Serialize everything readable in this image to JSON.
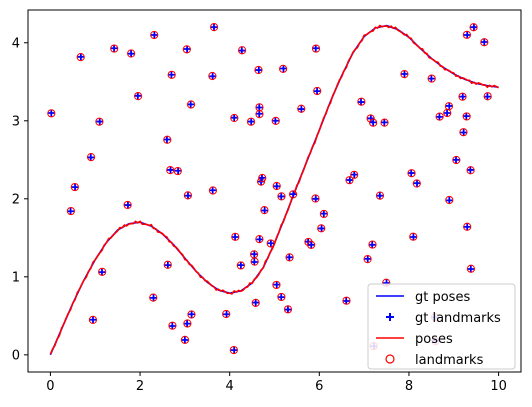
{
  "chart_data": {
    "type": "scatter",
    "title": "",
    "xlabel": "",
    "ylabel": "",
    "xlim": [
      -0.5,
      10.5
    ],
    "ylim": [
      -0.22,
      4.42
    ],
    "xticks": [
      "0",
      "2",
      "4",
      "6",
      "8",
      "10"
    ],
    "yticks": [
      "0",
      "1",
      "2",
      "3",
      "4"
    ],
    "grid": false,
    "legend_position": "lower-right",
    "series": [
      {
        "name": "gt poses",
        "kind": "line",
        "color": "#0000ff",
        "curve": "y = 1.7*sin(x)/x^-0 style trajectory",
        "x": [
          0,
          0.25,
          0.5,
          0.75,
          1.0,
          1.25,
          1.5,
          1.75,
          2.0,
          2.25,
          2.5,
          2.75,
          3.0,
          3.25,
          3.5,
          3.75,
          4.0,
          4.25,
          4.5,
          4.75,
          5.0,
          5.25,
          5.5,
          5.75,
          6.0,
          6.25,
          6.5,
          6.75,
          7.0,
          7.25,
          7.5,
          7.75,
          8.0,
          8.25,
          8.5,
          8.75,
          9.0,
          9.25,
          9.5,
          9.75,
          10.0
        ],
        "y": [
          0.0,
          0.33,
          0.66,
          0.96,
          1.22,
          1.44,
          1.6,
          1.68,
          1.7,
          1.65,
          1.55,
          1.41,
          1.24,
          1.07,
          0.93,
          0.83,
          0.79,
          0.82,
          0.92,
          1.12,
          1.43,
          1.79,
          2.16,
          2.52,
          2.88,
          3.25,
          3.58,
          3.87,
          4.08,
          4.19,
          4.22,
          4.17,
          4.07,
          3.93,
          3.8,
          3.69,
          3.6,
          3.53,
          3.48,
          3.45,
          3.43
        ]
      },
      {
        "name": "gt landmarks",
        "kind": "marker-plus",
        "color": "#0000ff"
      },
      {
        "name": "poses",
        "kind": "line",
        "color": "#ff0000"
      },
      {
        "name": "landmarks",
        "kind": "marker-circle",
        "color": "#ff0000"
      }
    ],
    "landmarks": [
      [
        0.02,
        3.1
      ],
      [
        0.45,
        1.84
      ],
      [
        0.55,
        2.15
      ],
      [
        0.68,
        3.82
      ],
      [
        0.9,
        2.53
      ],
      [
        0.95,
        0.45
      ],
      [
        1.1,
        2.99
      ],
      [
        1.15,
        1.06
      ],
      [
        1.42,
        3.93
      ],
      [
        1.73,
        1.92
      ],
      [
        1.8,
        3.86
      ],
      [
        1.95,
        3.32
      ],
      [
        2.3,
        0.73
      ],
      [
        2.32,
        4.1
      ],
      [
        2.6,
        2.76
      ],
      [
        2.62,
        1.15
      ],
      [
        2.68,
        2.37
      ],
      [
        2.7,
        3.59
      ],
      [
        2.72,
        0.37
      ],
      [
        2.85,
        2.36
      ],
      [
        3.0,
        0.19
      ],
      [
        3.05,
        0.4
      ],
      [
        3.05,
        3.92
      ],
      [
        3.07,
        2.04
      ],
      [
        3.13,
        3.21
      ],
      [
        3.15,
        0.52
      ],
      [
        3.62,
        3.57
      ],
      [
        3.62,
        2.11
      ],
      [
        3.65,
        4.2
      ],
      [
        3.93,
        0.52
      ],
      [
        4.1,
        3.04
      ],
      [
        4.12,
        1.51
      ],
      [
        4.1,
        0.06
      ],
      [
        4.25,
        1.15
      ],
      [
        4.27,
        3.9
      ],
      [
        4.48,
        2.99
      ],
      [
        4.55,
        1.29
      ],
      [
        4.55,
        1.19
      ],
      [
        4.58,
        0.67
      ],
      [
        4.65,
        3.65
      ],
      [
        4.66,
        3.17
      ],
      [
        4.66,
        3.09
      ],
      [
        4.67,
        1.48
      ],
      [
        4.7,
        2.22
      ],
      [
        4.72,
        2.27
      ],
      [
        4.78,
        1.85
      ],
      [
        4.92,
        1.43
      ],
      [
        5.02,
        3.0
      ],
      [
        5.05,
        2.16
      ],
      [
        5.05,
        0.9
      ],
      [
        5.15,
        2.03
      ],
      [
        5.15,
        0.74
      ],
      [
        5.2,
        3.67
      ],
      [
        5.3,
        0.58
      ],
      [
        5.33,
        1.25
      ],
      [
        5.42,
        2.06
      ],
      [
        5.6,
        3.15
      ],
      [
        5.75,
        1.45
      ],
      [
        5.82,
        1.41
      ],
      [
        5.92,
        2.0
      ],
      [
        5.92,
        3.93
      ],
      [
        5.95,
        3.38
      ],
      [
        6.05,
        1.62
      ],
      [
        6.1,
        1.81
      ],
      [
        6.6,
        0.69
      ],
      [
        6.68,
        2.24
      ],
      [
        6.78,
        2.31
      ],
      [
        6.93,
        3.24
      ],
      [
        7.08,
        1.23
      ],
      [
        7.15,
        3.03
      ],
      [
        7.18,
        1.41
      ],
      [
        7.2,
        2.98
      ],
      [
        7.22,
        0.11
      ],
      [
        7.35,
        2.04
      ],
      [
        7.45,
        2.98
      ],
      [
        7.5,
        0.92
      ],
      [
        7.9,
        3.6
      ],
      [
        8.05,
        2.33
      ],
      [
        8.1,
        1.51
      ],
      [
        8.18,
        2.2
      ],
      [
        8.5,
        3.54
      ],
      [
        8.58,
        0.48
      ],
      [
        8.6,
        0.18
      ],
      [
        8.68,
        3.05
      ],
      [
        8.85,
        3.1
      ],
      [
        8.9,
        3.19
      ],
      [
        8.9,
        1.98
      ],
      [
        9.05,
        2.5
      ],
      [
        9.2,
        3.31
      ],
      [
        9.22,
        2.85
      ],
      [
        9.28,
        3.06
      ],
      [
        9.3,
        1.64
      ],
      [
        9.3,
        4.1
      ],
      [
        9.37,
        2.37
      ],
      [
        9.38,
        1.1
      ],
      [
        9.45,
        4.2
      ],
      [
        9.68,
        4.01
      ],
      [
        9.75,
        3.31
      ]
    ]
  },
  "legend": {
    "items": [
      {
        "label": "gt poses",
        "kind": "line",
        "color": "#0000ff"
      },
      {
        "label": "gt landmarks",
        "kind": "plus",
        "color": "#0000ff"
      },
      {
        "label": "poses",
        "kind": "line",
        "color": "#ff0000"
      },
      {
        "label": "landmarks",
        "kind": "circle",
        "color": "#ff0000"
      }
    ]
  }
}
